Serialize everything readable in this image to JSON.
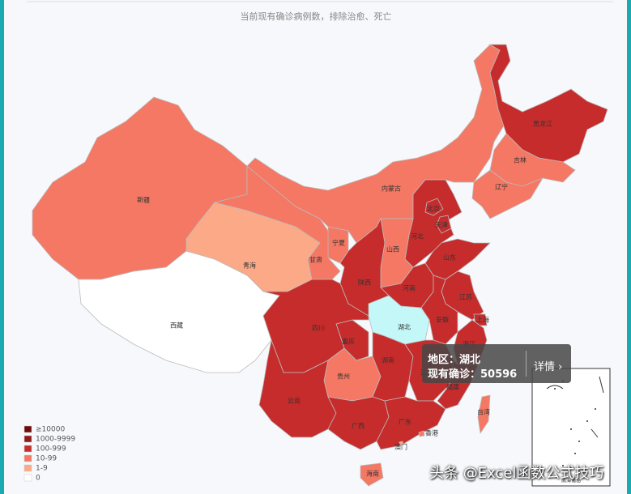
{
  "subtitle": "当前现有确诊病例数，排除治愈、死亡",
  "legend": [
    {
      "label": "≥10000",
      "color": "#6e0b0b"
    },
    {
      "label": "1000-9999",
      "color": "#8f1a1a"
    },
    {
      "label": "100-999",
      "color": "#c62c2c"
    },
    {
      "label": "10-99",
      "color": "#f47864"
    },
    {
      "label": "1-9",
      "color": "#fba986"
    },
    {
      "label": "0",
      "color": "#ffffff"
    }
  ],
  "regions": [
    {
      "name": "新疆",
      "color": "#f47864"
    },
    {
      "name": "西藏",
      "color": "#ffffff"
    },
    {
      "name": "青海",
      "color": "#fba986"
    },
    {
      "name": "甘肃",
      "color": "#f47864"
    },
    {
      "name": "内蒙古",
      "color": "#f47864"
    },
    {
      "name": "黑龙江",
      "color": "#c62c2c"
    },
    {
      "name": "吉林",
      "color": "#f47864"
    },
    {
      "name": "辽宁",
      "color": "#f47864"
    },
    {
      "name": "河北",
      "color": "#c62c2c"
    },
    {
      "name": "北京",
      "color": "#c62c2c"
    },
    {
      "name": "天津",
      "color": "#c62c2c"
    },
    {
      "name": "山西",
      "color": "#f47864"
    },
    {
      "name": "宁夏",
      "color": "#f47864"
    },
    {
      "name": "陕西",
      "color": "#c62c2c"
    },
    {
      "name": "山东",
      "color": "#c62c2c"
    },
    {
      "name": "河南",
      "color": "#c62c2c"
    },
    {
      "name": "江苏",
      "color": "#c62c2c"
    },
    {
      "name": "安徽",
      "color": "#c62c2c"
    },
    {
      "name": "上海",
      "color": "#c62c2c"
    },
    {
      "name": "浙江",
      "color": "#c62c2c"
    },
    {
      "name": "湖北",
      "color": "#c4f8f8"
    },
    {
      "name": "重庆",
      "color": "#c62c2c"
    },
    {
      "name": "四川",
      "color": "#c62c2c"
    },
    {
      "name": "贵州",
      "color": "#f47864"
    },
    {
      "name": "云南",
      "color": "#c62c2c"
    },
    {
      "name": "湖南",
      "color": "#c62c2c"
    },
    {
      "name": "江西",
      "color": "#c62c2c"
    },
    {
      "name": "福建",
      "color": "#c62c2c"
    },
    {
      "name": "广西",
      "color": "#c62c2c"
    },
    {
      "name": "广东",
      "color": "#c62c2c"
    },
    {
      "name": "海南",
      "color": "#f47864"
    },
    {
      "name": "台湾",
      "color": "#f47864"
    },
    {
      "name": "香港",
      "color": "#f47864"
    },
    {
      "name": "澳门",
      "color": "#fba986"
    }
  ],
  "inset_label": "南海诸岛",
  "tooltip": {
    "region": "地区：湖北",
    "count": "现有确诊：50596",
    "detail": "详情 ›"
  },
  "watermark": "头条 @Excel函数公式技巧"
}
